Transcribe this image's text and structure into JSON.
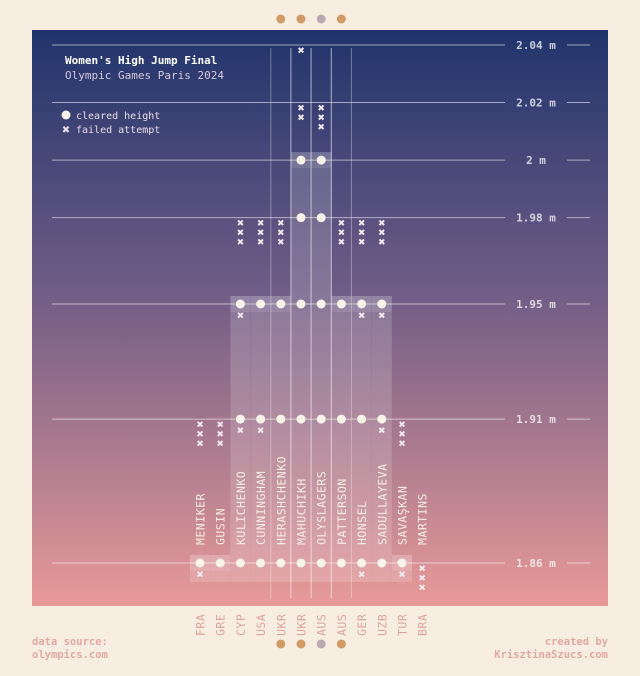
{
  "chart_data": {
    "type": "scatter",
    "title": "Women's High Jump Final",
    "subtitle": "Olympic Games Paris 2024",
    "legend": [
      {
        "symbol": "cleared",
        "label": "cleared height"
      },
      {
        "symbol": "failed",
        "label": "failed attempt"
      }
    ],
    "legend_position": "top-left",
    "y_ticks": [
      {
        "value": 1.86,
        "label": "1.86 m"
      },
      {
        "value": 1.91,
        "label": "1.91 m"
      },
      {
        "value": 1.95,
        "label": "1.95 m"
      },
      {
        "value": 1.98,
        "label": "1.98 m"
      },
      {
        "value": 2.0,
        "label": "2 m"
      },
      {
        "value": 2.02,
        "label": "2.02 m"
      },
      {
        "value": 2.04,
        "label": "2.04 m"
      }
    ],
    "ylim": [
      1.84,
      2.045
    ],
    "athletes": [
      {
        "name": "MENIKER",
        "country": "FRA",
        "medal": null,
        "results": [
          {
            "h": 1.86,
            "r": "xo"
          },
          {
            "h": 1.91,
            "r": "xxx"
          }
        ]
      },
      {
        "name": "GUSIN",
        "country": "GRE",
        "medal": null,
        "results": [
          {
            "h": 1.86,
            "r": "o"
          },
          {
            "h": 1.91,
            "r": "xxx"
          }
        ]
      },
      {
        "name": "KULICHENKO",
        "country": "CYP",
        "medal": null,
        "results": [
          {
            "h": 1.86,
            "r": "o"
          },
          {
            "h": 1.91,
            "r": "xo"
          },
          {
            "h": 1.95,
            "r": "xo"
          },
          {
            "h": 1.98,
            "r": "xxx"
          }
        ]
      },
      {
        "name": "CUNNINGHAM",
        "country": "USA",
        "medal": null,
        "results": [
          {
            "h": 1.86,
            "r": "o"
          },
          {
            "h": 1.91,
            "r": "xo"
          },
          {
            "h": 1.95,
            "r": "o"
          },
          {
            "h": 1.98,
            "r": "xxx"
          }
        ]
      },
      {
        "name": "HERASHCHENKO",
        "country": "UKR",
        "medal": "bronze",
        "results": [
          {
            "h": 1.86,
            "r": "o"
          },
          {
            "h": 1.91,
            "r": "o"
          },
          {
            "h": 1.95,
            "r": "o"
          },
          {
            "h": 1.98,
            "r": "xxx"
          }
        ]
      },
      {
        "name": "MAHUCHIKH",
        "country": "UKR",
        "medal": "gold",
        "results": [
          {
            "h": 1.86,
            "r": "o"
          },
          {
            "h": 1.91,
            "r": "o"
          },
          {
            "h": 1.95,
            "r": "o"
          },
          {
            "h": 1.98,
            "r": "o"
          },
          {
            "h": 2.0,
            "r": "o"
          },
          {
            "h": 2.02,
            "r": "xx"
          },
          {
            "h": 2.04,
            "r": "x"
          }
        ]
      },
      {
        "name": "OLYSLAGERS",
        "country": "AUS",
        "medal": "silver",
        "results": [
          {
            "h": 1.86,
            "r": "o"
          },
          {
            "h": 1.91,
            "r": "o"
          },
          {
            "h": 1.95,
            "r": "o"
          },
          {
            "h": 1.98,
            "r": "o"
          },
          {
            "h": 2.0,
            "r": "o"
          },
          {
            "h": 2.02,
            "r": "xxx"
          }
        ]
      },
      {
        "name": "PATTERSON",
        "country": "AUS",
        "medal": "bronze",
        "results": [
          {
            "h": 1.86,
            "r": "o"
          },
          {
            "h": 1.91,
            "r": "o"
          },
          {
            "h": 1.95,
            "r": "o"
          },
          {
            "h": 1.98,
            "r": "xxx"
          }
        ]
      },
      {
        "name": "HONSEL",
        "country": "GER",
        "medal": null,
        "results": [
          {
            "h": 1.86,
            "r": "xo"
          },
          {
            "h": 1.91,
            "r": "o"
          },
          {
            "h": 1.95,
            "r": "xo"
          },
          {
            "h": 1.98,
            "r": "xxx"
          }
        ]
      },
      {
        "name": "SADULLAYEVA",
        "country": "UZB",
        "medal": null,
        "results": [
          {
            "h": 1.86,
            "r": "o"
          },
          {
            "h": 1.91,
            "r": "xo"
          },
          {
            "h": 1.95,
            "r": "xo"
          },
          {
            "h": 1.98,
            "r": "xxx"
          }
        ]
      },
      {
        "name": "SAVAŞKAN",
        "country": "TUR",
        "medal": null,
        "results": [
          {
            "h": 1.86,
            "r": "xo"
          },
          {
            "h": 1.91,
            "r": "xxx"
          }
        ]
      },
      {
        "name": "MARTINS",
        "country": "BRA",
        "medal": null,
        "results": [
          {
            "h": 1.86,
            "r": "xxx"
          }
        ]
      }
    ]
  },
  "colors": {
    "page": "#f7eee1",
    "plot_top": "#20346b",
    "plot_mid": "#6f5c86",
    "plot_bottom": "#e89a98",
    "gold": "#d29a67",
    "silver": "#bba8b0",
    "country_label": "#e0a39e",
    "name_label": "#f8eee3"
  },
  "footer": {
    "source_label": "data source:",
    "source_value": "olympics.com",
    "credit_label": "created by",
    "credit_value": "KrisztinaSzucs.com"
  }
}
